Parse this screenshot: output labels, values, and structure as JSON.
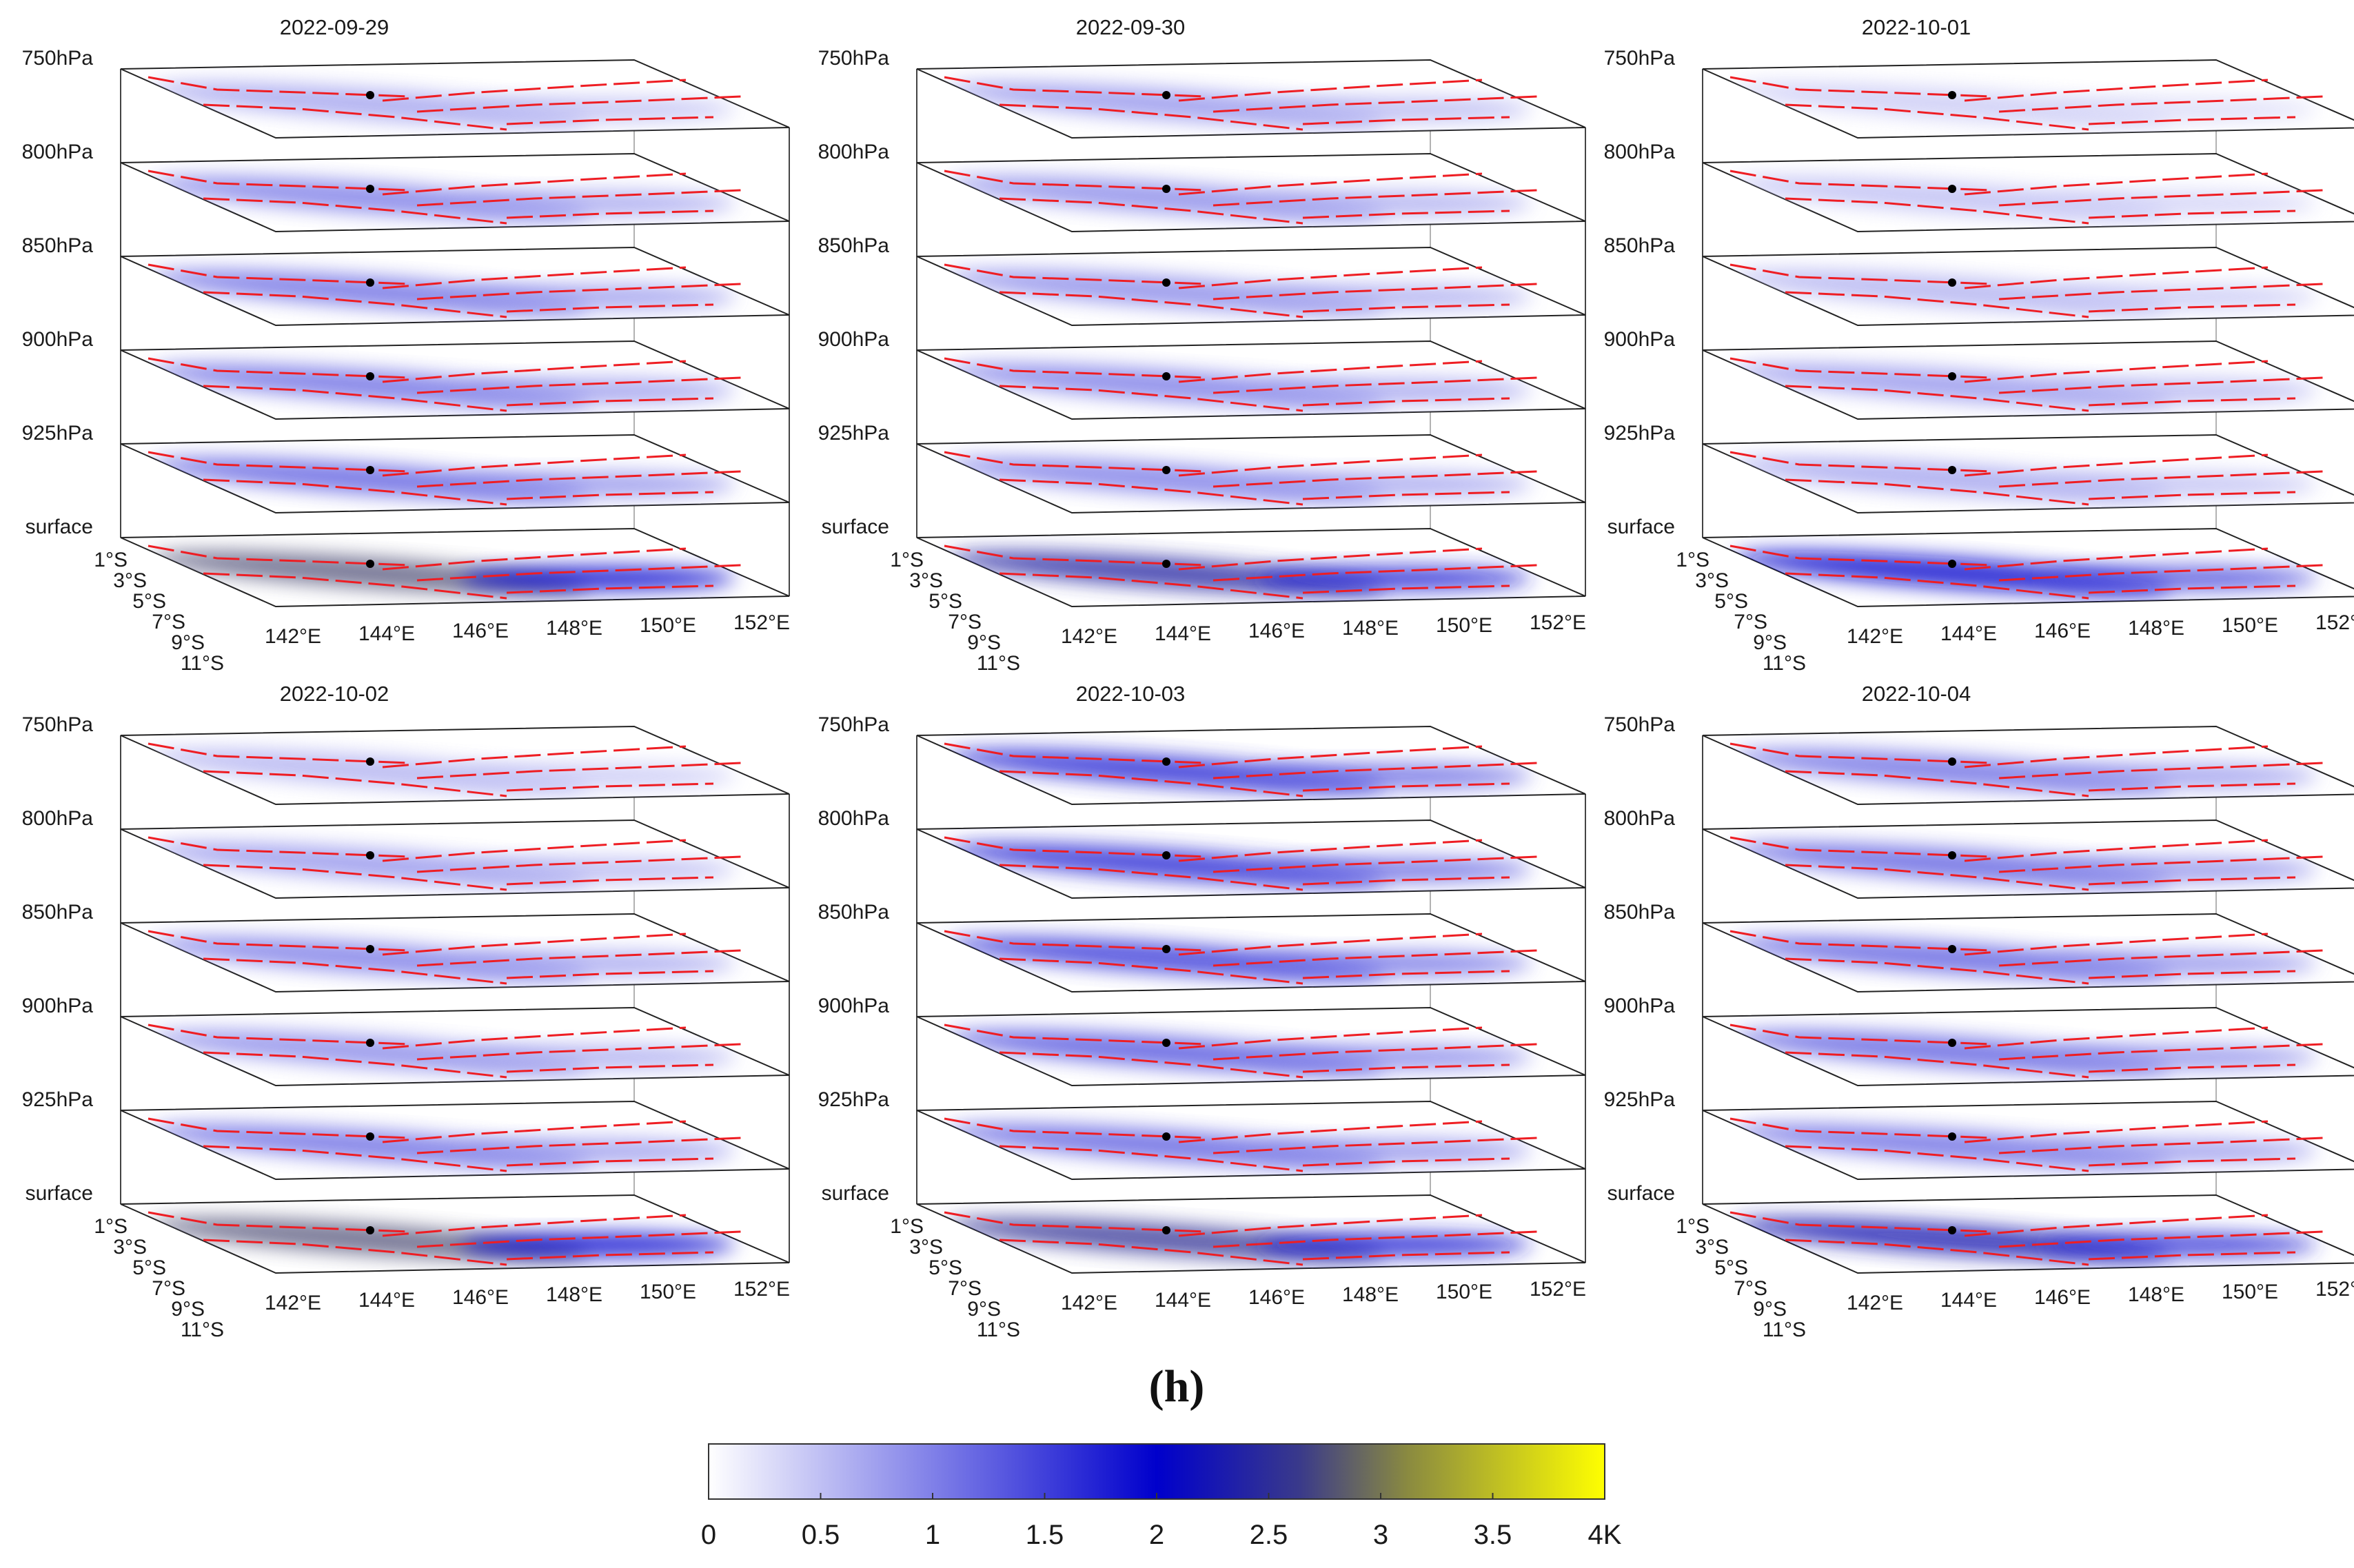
{
  "caption": "(h)",
  "chart_data": {
    "type": "heatmap",
    "description_units": "K",
    "colorbar": {
      "min": 0,
      "max": 4,
      "ticks": [
        "0",
        "0.5",
        "1",
        "1.5",
        "2",
        "2.5",
        "3",
        "3.5",
        "4K"
      ],
      "colors": [
        "#ffffff",
        "#8080e8",
        "#0000cc",
        "#f5f51a",
        "#ffff00"
      ],
      "stops": [
        0,
        1,
        2,
        3.5,
        4
      ]
    },
    "levels": [
      "750hPa",
      "800hPa",
      "850hPa",
      "900hPa",
      "925hPa",
      "surface"
    ],
    "lon_ticks": [
      "142°E",
      "144°E",
      "146°E",
      "148°E",
      "150°E",
      "152°E"
    ],
    "lat_ticks": [
      "1°S",
      "3°S",
      "5°S",
      "7°S",
      "9°S",
      "11°S"
    ],
    "panels": [
      {
        "date": "2022-09-29",
        "level_intensity": [
          0.7,
          1.0,
          1.1,
          1.1,
          1.2,
          2.6
        ]
      },
      {
        "date": "2022-09-30",
        "level_intensity": [
          0.8,
          0.9,
          0.9,
          1.0,
          1.0,
          2.3
        ]
      },
      {
        "date": "2022-10-01",
        "level_intensity": [
          0.4,
          0.5,
          0.6,
          0.8,
          0.7,
          1.9
        ]
      },
      {
        "date": "2022-10-02",
        "level_intensity": [
          0.6,
          0.8,
          1.0,
          0.9,
          1.1,
          2.6
        ]
      },
      {
        "date": "2022-10-03",
        "level_intensity": [
          1.6,
          1.6,
          1.5,
          1.3,
          1.2,
          2.4
        ]
      },
      {
        "date": "2022-10-04",
        "level_intensity": [
          1.1,
          1.2,
          1.2,
          1.2,
          1.1,
          2.2
        ]
      }
    ]
  }
}
